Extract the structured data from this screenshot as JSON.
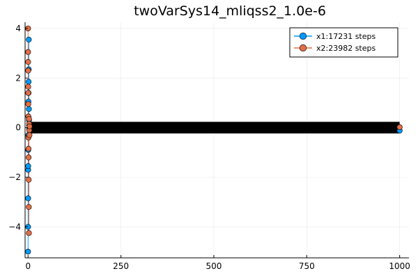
{
  "chart_data": {
    "type": "scatter",
    "title": "twoVarSys14_mliqss2_1.0e-6",
    "xlabel": "",
    "ylabel": "",
    "xlim": [
      -8,
      1025
    ],
    "ylim": [
      -5.25,
      4.25
    ],
    "xticks": [
      0,
      250,
      500,
      750,
      1000
    ],
    "yticks": [
      -4,
      -2,
      0,
      2,
      4
    ],
    "xtick_labels": [
      "0",
      "250",
      "500",
      "750",
      "1000"
    ],
    "ytick_labels": [
      "−4",
      "−2",
      "0",
      "2",
      "4"
    ],
    "grid": true,
    "legend_position": "top-right",
    "dense_band": {
      "x_start": 5,
      "x_end": 1000,
      "y_low": -0.15,
      "y_high": 0.15,
      "color": "#000000"
    },
    "series": [
      {
        "name": "x1:17231 steps",
        "color": "#009AFA",
        "x": [
          0,
          0.1,
          0.2,
          0.3,
          0.4,
          0.5,
          0.6,
          0.8,
          1.0,
          1.2,
          1.5,
          1.8,
          2.0,
          2.3,
          2.6,
          3.0,
          3.4,
          1000
        ],
        "y": [
          -5.0,
          -4.0,
          -2.85,
          -1.7,
          -1.55,
          -0.9,
          -0.3,
          0.45,
          1.05,
          1.4,
          1.85,
          2.35,
          3.55,
          0.75,
          0.3,
          0.1,
          -0.05,
          -0.12
        ]
      },
      {
        "name": "x2:23982 steps",
        "color": "#E26F46",
        "x": [
          0,
          0.1,
          0.2,
          0.3,
          0.4,
          0.5,
          0.6,
          0.8,
          1.0,
          1.2,
          1.5,
          1.8,
          2.0,
          2.3,
          2.6,
          3.0,
          3.4,
          3.8,
          4.2,
          1000
        ],
        "y": [
          4.0,
          3.05,
          2.65,
          2.3,
          1.65,
          1.4,
          0.95,
          0.45,
          -0.4,
          -0.85,
          -1.2,
          -2.1,
          -3.2,
          -4.25,
          0.35,
          0.15,
          -0.1,
          -0.3,
          0.05,
          0.02
        ]
      }
    ]
  }
}
